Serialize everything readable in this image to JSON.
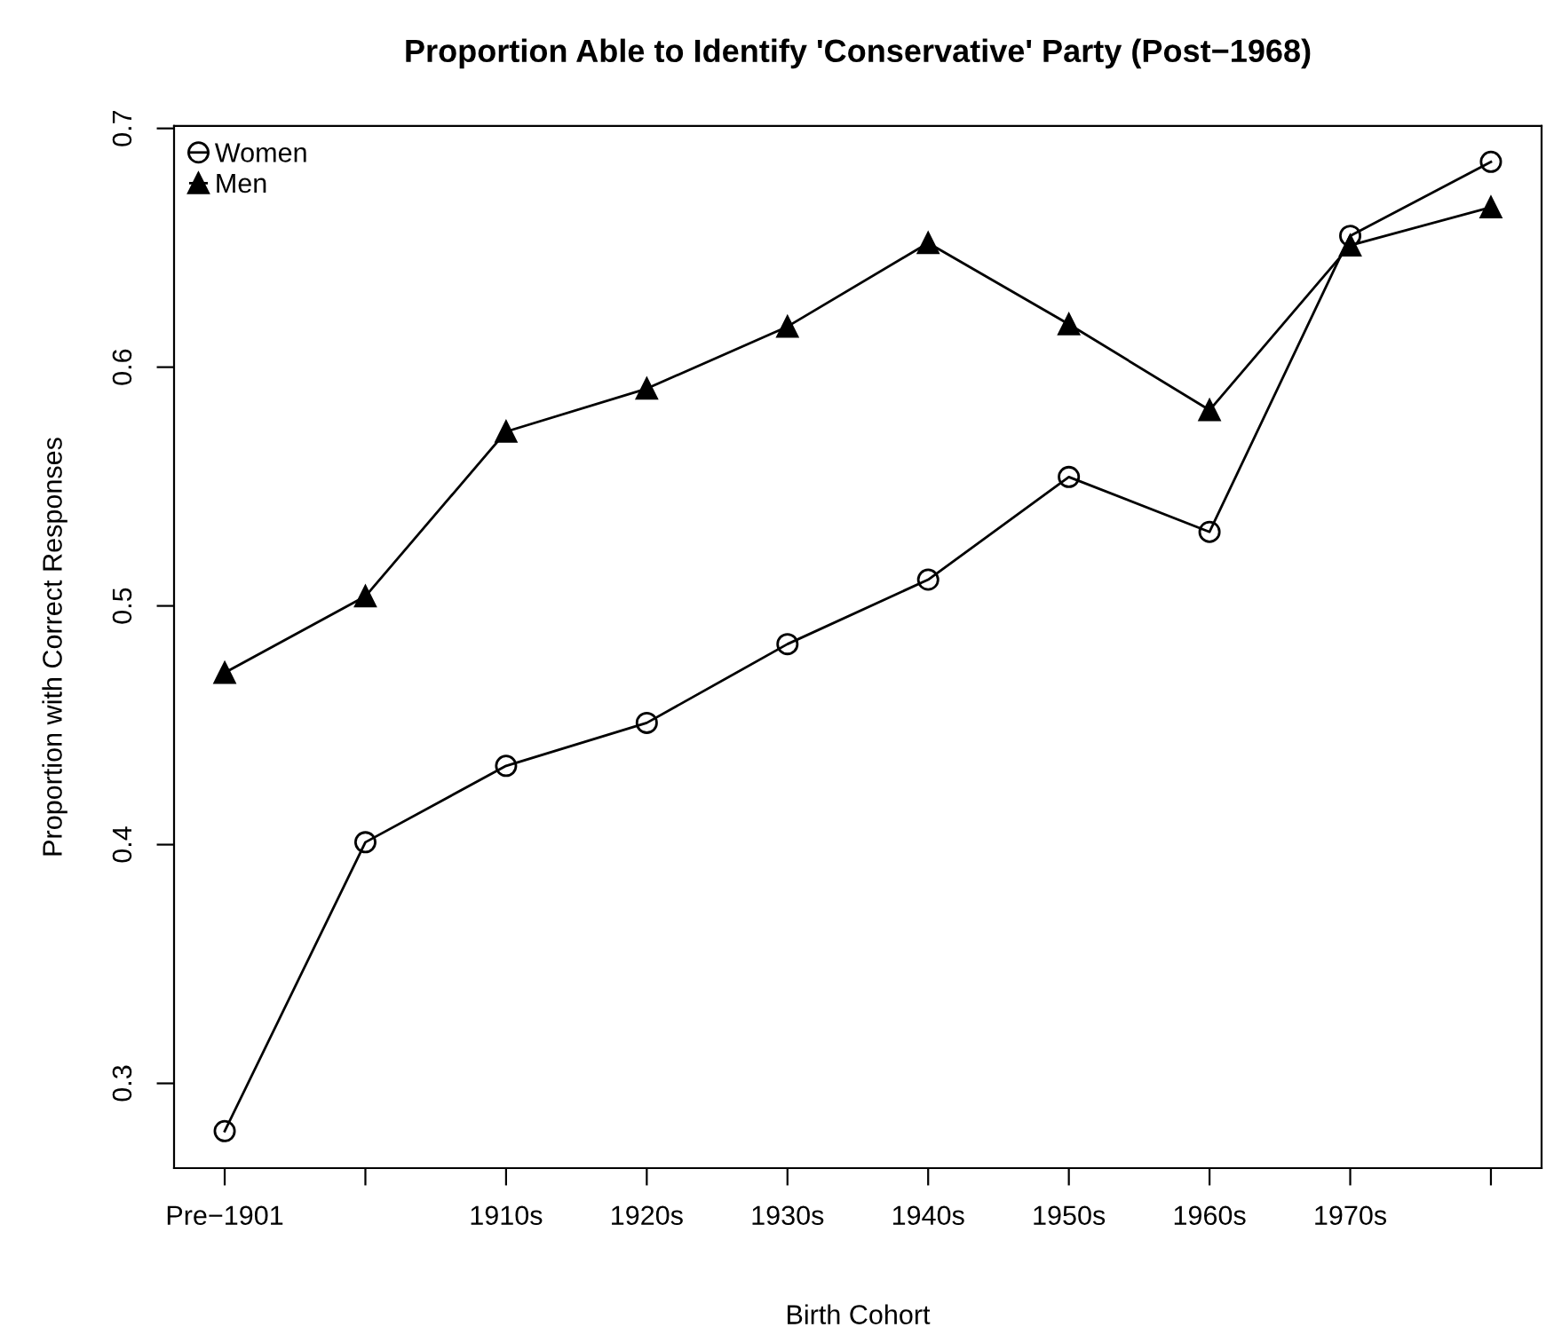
{
  "chart_data": {
    "type": "line",
    "title": "Proportion Able to Identify 'Conservative' Party (Post−1968)",
    "xlabel": "Birth Cohort",
    "ylabel": "Proportion with Correct Responses",
    "categories": [
      "Pre−1901",
      null,
      "1910s",
      "1920s",
      "1930s",
      "1940s",
      "1950s",
      "1960s",
      "1970s",
      null
    ],
    "series": [
      {
        "name": "Women",
        "color": "#000000",
        "marker": "circle",
        "values": [
          0.28,
          0.401,
          0.433,
          0.451,
          0.484,
          0.511,
          0.554,
          0.531,
          0.655,
          0.686
        ]
      },
      {
        "name": "Men",
        "color": "#000000",
        "marker": "triangle",
        "values": [
          0.472,
          0.504,
          0.573,
          0.591,
          0.617,
          0.652,
          0.618,
          0.582,
          0.651,
          0.667
        ]
      }
    ],
    "ylim": [
      0.2645,
      0.701
    ],
    "yticks": [
      0.3,
      0.4,
      0.5,
      0.6,
      0.7
    ],
    "grid": false,
    "legend": "top left",
    "line_style": "solid"
  }
}
